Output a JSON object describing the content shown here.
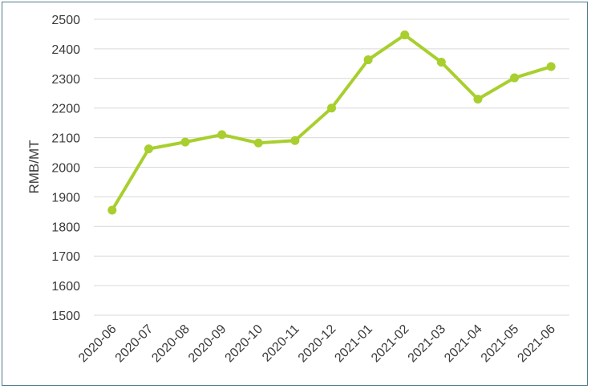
{
  "chart_data": {
    "type": "line",
    "title": "",
    "xlabel": "",
    "ylabel": "RMB/MT",
    "ylim": [
      1500,
      2500
    ],
    "yticks": [
      1500,
      1600,
      1700,
      1800,
      1900,
      2000,
      2100,
      2200,
      2300,
      2400,
      2500
    ],
    "grid": true,
    "legend": "none",
    "categories": [
      "2020-06",
      "2020-07",
      "2020-08",
      "2020-09",
      "2020-10",
      "2020-11",
      "2020-12",
      "2021-01",
      "2021-02",
      "2021-03",
      "2021-04",
      "2021-05",
      "2021-06"
    ],
    "series": [
      {
        "color": "#a8cf2e",
        "values": [
          1855,
          2062,
          2085,
          2110,
          2082,
          2090,
          2200,
          2363,
          2447,
          2355,
          2230,
          2302,
          2340
        ]
      }
    ]
  }
}
